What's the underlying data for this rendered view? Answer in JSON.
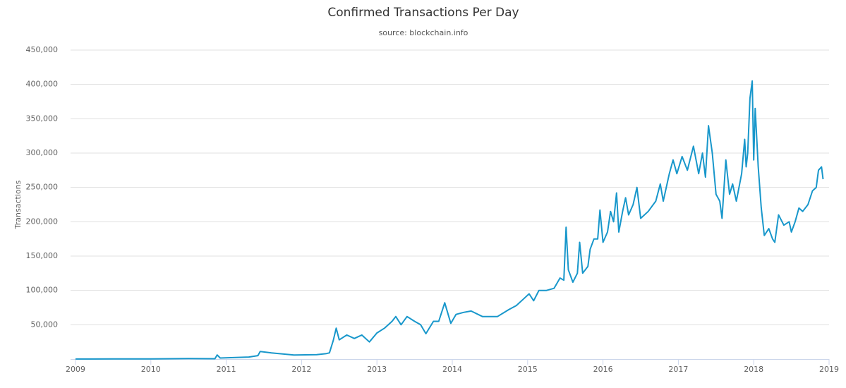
{
  "chart_data": {
    "type": "line",
    "title": "Confirmed Transactions Per Day",
    "subtitle": "source: blockchain.info",
    "y_label": "Transactions",
    "x": [
      2009.0,
      2009.5,
      2010.0,
      2010.5,
      2010.85,
      2010.88,
      2010.92,
      2011.3,
      2011.42,
      2011.45,
      2011.6,
      2011.9,
      2012.2,
      2012.33,
      2012.37,
      2012.42,
      2012.46,
      2012.5,
      2012.6,
      2012.7,
      2012.8,
      2012.9,
      2013.0,
      2013.1,
      2013.2,
      2013.25,
      2013.32,
      2013.4,
      2013.5,
      2013.58,
      2013.65,
      2013.75,
      2013.82,
      2013.9,
      2013.98,
      2014.05,
      2014.15,
      2014.25,
      2014.4,
      2014.6,
      2014.75,
      2014.85,
      2014.95,
      2015.02,
      2015.08,
      2015.15,
      2015.25,
      2015.35,
      2015.43,
      2015.48,
      2015.51,
      2015.54,
      2015.6,
      2015.66,
      2015.69,
      2015.73,
      2015.8,
      2015.83,
      2015.88,
      2015.93,
      2015.96,
      2016.0,
      2016.06,
      2016.1,
      2016.14,
      2016.18,
      2016.21,
      2016.26,
      2016.3,
      2016.34,
      2016.4,
      2016.45,
      2016.5,
      2016.6,
      2016.7,
      2016.76,
      2016.8,
      2016.88,
      2016.93,
      2016.98,
      2017.05,
      2017.12,
      2017.2,
      2017.27,
      2017.32,
      2017.36,
      2017.4,
      2017.45,
      2017.5,
      2017.55,
      2017.58,
      2017.63,
      2017.68,
      2017.72,
      2017.77,
      2017.84,
      2017.88,
      2017.9,
      2017.92,
      2017.95,
      2017.98,
      2018.0,
      2018.02,
      2018.06,
      2018.1,
      2018.14,
      2018.2,
      2018.25,
      2018.28,
      2018.33,
      2018.4,
      2018.47,
      2018.5,
      2018.55,
      2018.6,
      2018.65,
      2018.72,
      2018.78,
      2018.83,
      2018.86,
      2018.9,
      2018.92
    ],
    "series": [
      {
        "name": "Transactions",
        "color": "#1897cb",
        "values": [
          100,
          200,
          300,
          700,
          500,
          6000,
          1500,
          3000,
          5000,
          11000,
          9000,
          6000,
          6500,
          8000,
          9000,
          27000,
          45000,
          28000,
          35000,
          30000,
          35000,
          25000,
          38000,
          45000,
          55000,
          62000,
          50000,
          62000,
          55000,
          50000,
          37000,
          55000,
          55000,
          82000,
          52000,
          65000,
          68000,
          70000,
          62000,
          62000,
          72000,
          78000,
          88000,
          95000,
          85000,
          100000,
          100000,
          103000,
          118000,
          115000,
          192000,
          130000,
          112000,
          125000,
          170000,
          125000,
          135000,
          160000,
          175000,
          175000,
          217000,
          170000,
          185000,
          215000,
          200000,
          242000,
          185000,
          215000,
          235000,
          210000,
          225000,
          250000,
          205000,
          215000,
          230000,
          255000,
          230000,
          270000,
          290000,
          270000,
          295000,
          275000,
          310000,
          270000,
          300000,
          265000,
          340000,
          300000,
          240000,
          230000,
          205000,
          290000,
          240000,
          255000,
          230000,
          270000,
          320000,
          280000,
          300000,
          380000,
          405000,
          290000,
          365000,
          280000,
          220000,
          180000,
          190000,
          175000,
          170000,
          210000,
          195000,
          200000,
          185000,
          200000,
          220000,
          215000,
          225000,
          245000,
          250000,
          275000,
          280000,
          262000
        ]
      }
    ],
    "xlim": [
      2009,
      2019
    ],
    "xticks": [
      2009,
      2010,
      2011,
      2012,
      2013,
      2014,
      2015,
      2016,
      2017,
      2018,
      2019
    ],
    "ylim": [
      0,
      450000
    ],
    "yticks": [
      {
        "value": 50000,
        "label": "50,000"
      },
      {
        "value": 100000,
        "label": "100,000"
      },
      {
        "value": 150000,
        "label": "150,000"
      },
      {
        "value": 200000,
        "label": "200,000"
      },
      {
        "value": 250000,
        "label": "250,000"
      },
      {
        "value": 300000,
        "label": "300,000"
      },
      {
        "value": 350000,
        "label": "350,000"
      },
      {
        "value": 400000,
        "label": "400,000"
      },
      {
        "value": 450000,
        "label": "450,000"
      }
    ],
    "grid": true
  }
}
